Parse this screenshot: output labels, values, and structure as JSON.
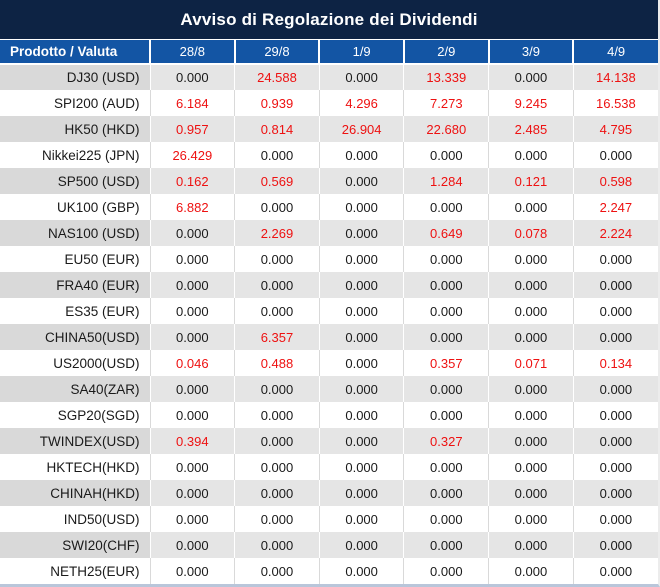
{
  "title": "Avviso di Regolazione dei Dividendi",
  "table": {
    "columns": [
      "Prodotto / Valuta",
      "28/8",
      "29/8",
      "1/9",
      "2/9",
      "3/9",
      "4/9"
    ],
    "rows": [
      {
        "product": "DJ30 (USD)",
        "values": [
          "0.000",
          "24.588",
          "0.000",
          "13.339",
          "0.000",
          "14.138"
        ]
      },
      {
        "product": "SPI200 (AUD)",
        "values": [
          "6.184",
          "0.939",
          "4.296",
          "7.273",
          "9.245",
          "16.538"
        ]
      },
      {
        "product": "HK50 (HKD)",
        "values": [
          "0.957",
          "0.814",
          "26.904",
          "22.680",
          "2.485",
          "4.795"
        ]
      },
      {
        "product": "Nikkei225 (JPN)",
        "values": [
          "26.429",
          "0.000",
          "0.000",
          "0.000",
          "0.000",
          "0.000"
        ]
      },
      {
        "product": "SP500 (USD)",
        "values": [
          "0.162",
          "0.569",
          "0.000",
          "1.284",
          "0.121",
          "0.598"
        ]
      },
      {
        "product": "UK100 (GBP)",
        "values": [
          "6.882",
          "0.000",
          "0.000",
          "0.000",
          "0.000",
          "2.247"
        ]
      },
      {
        "product": "NAS100 (USD)",
        "values": [
          "0.000",
          "2.269",
          "0.000",
          "0.649",
          "0.078",
          "2.224"
        ]
      },
      {
        "product": "EU50 (EUR)",
        "values": [
          "0.000",
          "0.000",
          "0.000",
          "0.000",
          "0.000",
          "0.000"
        ]
      },
      {
        "product": "FRA40 (EUR)",
        "values": [
          "0.000",
          "0.000",
          "0.000",
          "0.000",
          "0.000",
          "0.000"
        ]
      },
      {
        "product": "ES35 (EUR)",
        "values": [
          "0.000",
          "0.000",
          "0.000",
          "0.000",
          "0.000",
          "0.000"
        ]
      },
      {
        "product": "CHINA50(USD)",
        "values": [
          "0.000",
          "6.357",
          "0.000",
          "0.000",
          "0.000",
          "0.000"
        ]
      },
      {
        "product": "US2000(USD)",
        "values": [
          "0.046",
          "0.488",
          "0.000",
          "0.357",
          "0.071",
          "0.134"
        ]
      },
      {
        "product": "SA40(ZAR)",
        "values": [
          "0.000",
          "0.000",
          "0.000",
          "0.000",
          "0.000",
          "0.000"
        ]
      },
      {
        "product": "SGP20(SGD)",
        "values": [
          "0.000",
          "0.000",
          "0.000",
          "0.000",
          "0.000",
          "0.000"
        ]
      },
      {
        "product": "TWINDEX(USD)",
        "values": [
          "0.394",
          "0.000",
          "0.000",
          "0.327",
          "0.000",
          "0.000"
        ]
      },
      {
        "product": "HKTECH(HKD)",
        "values": [
          "0.000",
          "0.000",
          "0.000",
          "0.000",
          "0.000",
          "0.000"
        ]
      },
      {
        "product": "CHINAH(HKD)",
        "values": [
          "0.000",
          "0.000",
          "0.000",
          "0.000",
          "0.000",
          "0.000"
        ]
      },
      {
        "product": "IND50(USD)",
        "values": [
          "0.000",
          "0.000",
          "0.000",
          "0.000",
          "0.000",
          "0.000"
        ]
      },
      {
        "product": "SWI20(CHF)",
        "values": [
          "0.000",
          "0.000",
          "0.000",
          "0.000",
          "0.000",
          "0.000"
        ]
      },
      {
        "product": "NETH25(EUR)",
        "values": [
          "0.000",
          "0.000",
          "0.000",
          "0.000",
          "0.000",
          "0.000"
        ]
      }
    ]
  },
  "colors": {
    "title_bg": "#0d2344",
    "header_bg": "#1355a4",
    "row_alt_label_bg": "#d9d9d9",
    "row_alt_bg": "#e5e5e5",
    "value_red": "#ee1111",
    "value_black": "#1a1a1a",
    "footer_border": "#b9c6da"
  }
}
